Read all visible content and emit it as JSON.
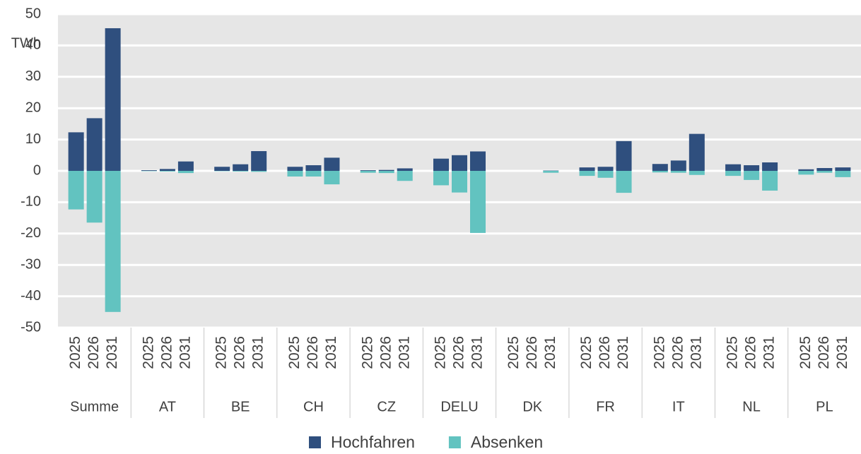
{
  "chart_data": {
    "type": "bar",
    "y_label": "TWh",
    "groups": [
      "Summe",
      "AT",
      "BE",
      "CH",
      "CZ",
      "DELU",
      "DK",
      "FR",
      "IT",
      "NL",
      "PL"
    ],
    "categories": [
      "2025",
      "2026",
      "2031",
      "2025",
      "2026",
      "2031",
      "2025",
      "2026",
      "2031",
      "2025",
      "2026",
      "2031",
      "2025",
      "2026",
      "2031",
      "2025",
      "2026",
      "2031",
      "2025",
      "2026",
      "2031",
      "2025",
      "2026",
      "2031",
      "2025",
      "2026",
      "2031",
      "2025",
      "2026",
      "2031",
      "2025",
      "2026",
      "2031"
    ],
    "series": [
      {
        "name": "Hochfahren",
        "color": "#2f4f7e",
        "values": [
          12.3,
          16.8,
          45.5,
          0.2,
          0.6,
          3,
          1.3,
          2.1,
          6.3,
          1.3,
          1.8,
          4.2,
          0.2,
          0.3,
          0.8,
          3.9,
          5,
          6.2,
          0,
          0,
          0.1,
          1.1,
          1.3,
          9.5,
          2.2,
          3.3,
          11.8,
          2.1,
          1.8,
          2.7,
          0.5,
          0.9,
          1.1
        ]
      },
      {
        "name": "Absenken",
        "color": "#62c3c0",
        "values": [
          -12.3,
          -16.5,
          -45,
          -0.1,
          -0.2,
          -0.7,
          -0.1,
          -0.2,
          -0.3,
          -1.8,
          -1.8,
          -4.3,
          -0.6,
          -0.7,
          -3.2,
          -4.6,
          -6.9,
          -19.8,
          0,
          0,
          -0.6,
          -1.6,
          -2.2,
          -7,
          -0.5,
          -0.6,
          -1.3,
          -1.6,
          -2.9,
          -6.3,
          -1.2,
          -0.6,
          -2
        ]
      }
    ],
    "ylim": [
      -50,
      50
    ],
    "yticks": [
      -50,
      -40,
      -30,
      -20,
      -10,
      0,
      10,
      20,
      30,
      40,
      50
    ],
    "grid": true
  }
}
